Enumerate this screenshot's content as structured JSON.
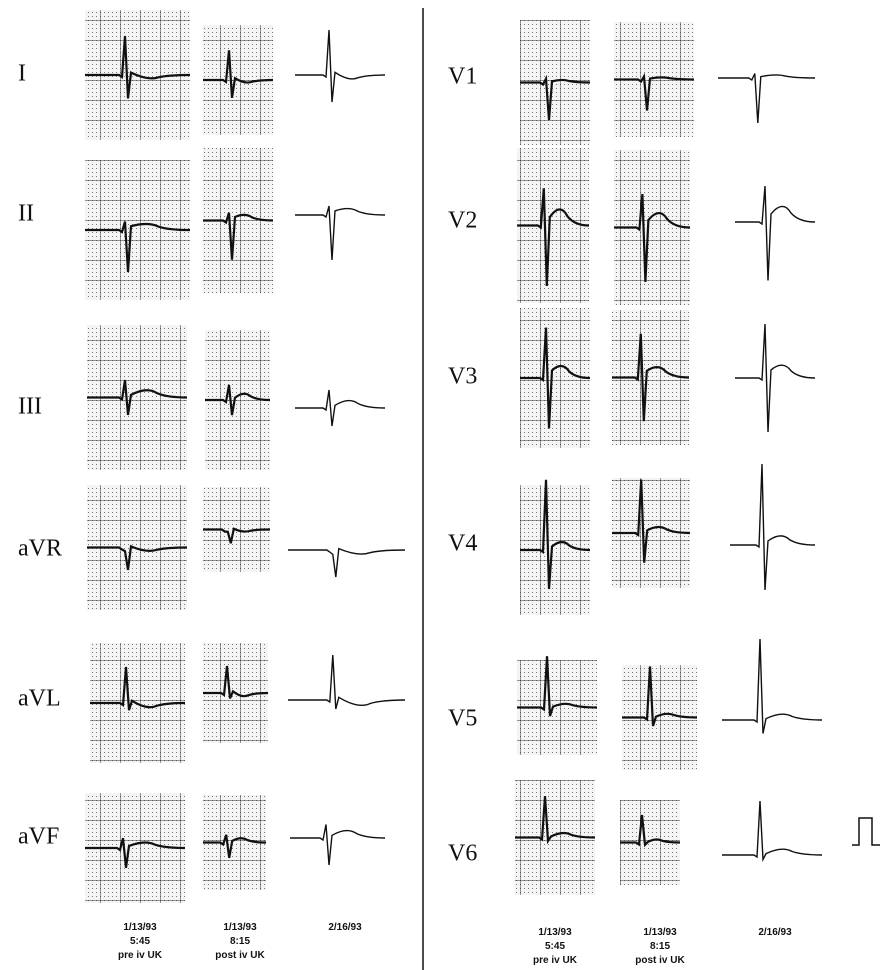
{
  "left": {
    "leads": [
      "I",
      "II",
      "III",
      "aVR",
      "aVL",
      "aVF"
    ],
    "columns": [
      {
        "date": "1/13/93",
        "time": "5:45",
        "note": "pre iv UK"
      },
      {
        "date": "1/13/93",
        "time": "8:15",
        "note": "post iv UK"
      },
      {
        "date": "2/16/93"
      }
    ]
  },
  "right": {
    "leads": [
      "V1",
      "V2",
      "V3",
      "V4",
      "V5",
      "V6"
    ],
    "columns": [
      {
        "date": "1/13/93",
        "time": "5:45",
        "note": "pre iv UK"
      },
      {
        "date": "1/13/93",
        "time": "8:15",
        "note": "post iv UK"
      },
      {
        "date": "2/16/93"
      }
    ]
  }
}
